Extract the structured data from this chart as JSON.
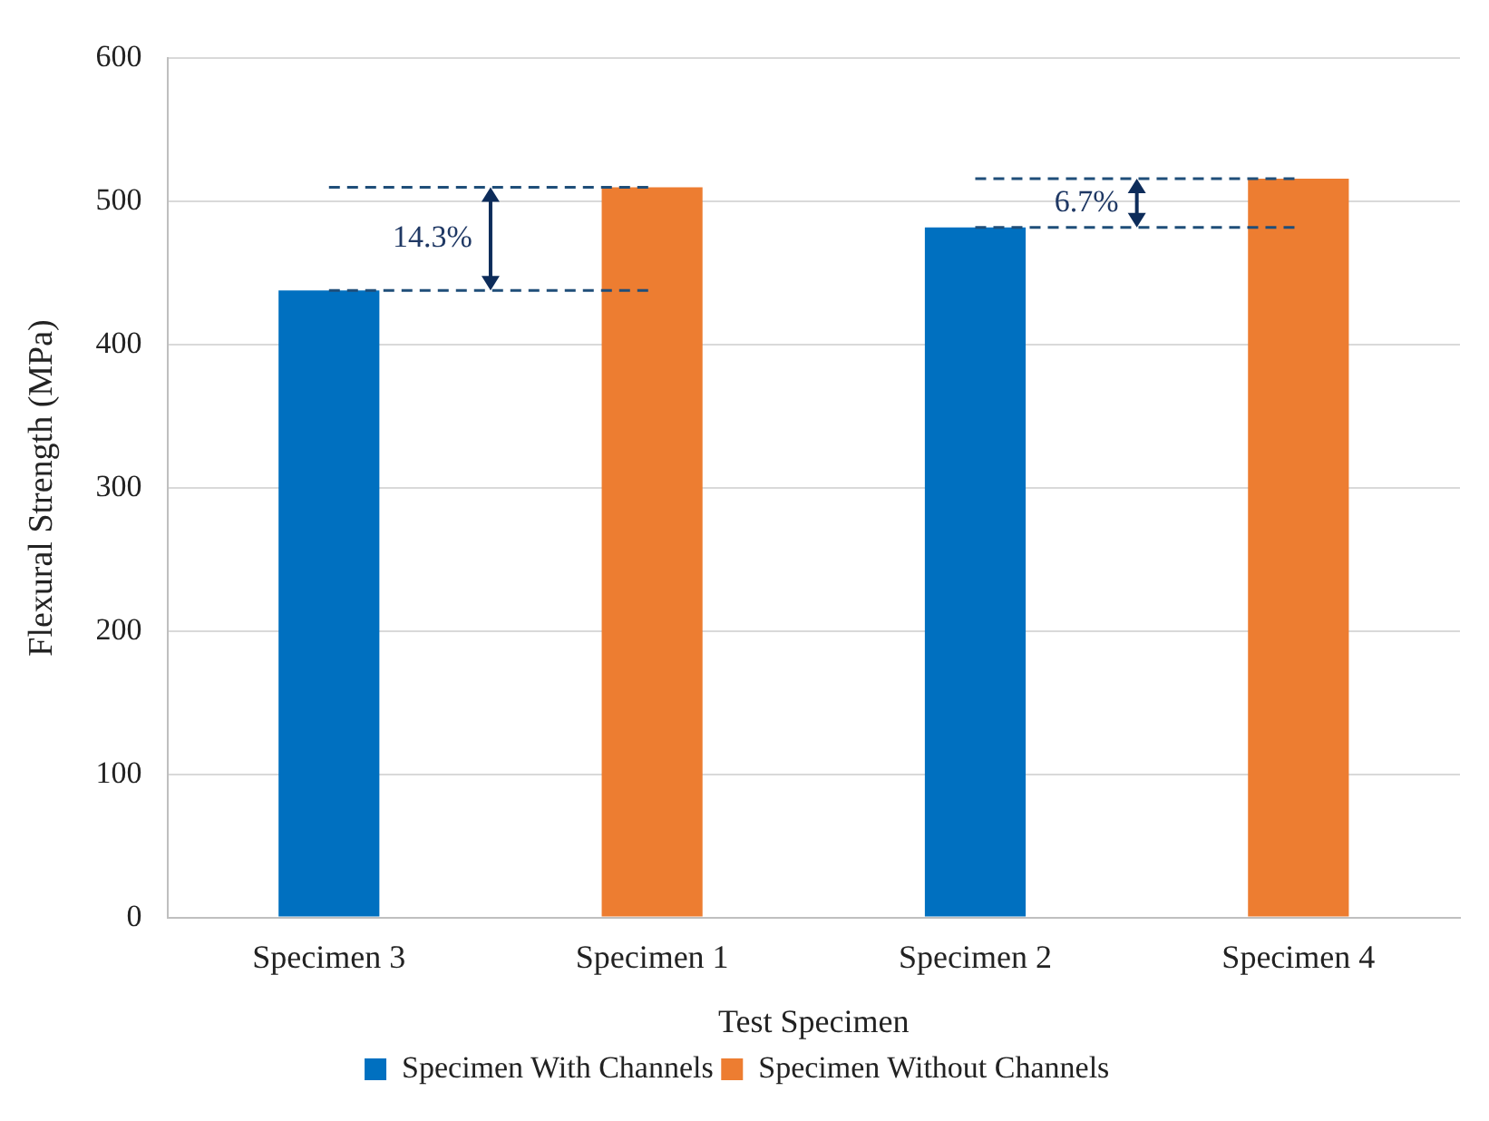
{
  "chart_data": {
    "type": "bar",
    "xlabel": "Test Specimen",
    "ylabel": "Flexural Strength (MPa)",
    "categories": [
      "Specimen 3",
      "Specimen 1",
      "Specimen 2",
      "Specimen 4"
    ],
    "series": [
      {
        "name": "Specimen With Channels",
        "color": "#0070c0",
        "values": [
          438,
          null,
          482,
          null
        ]
      },
      {
        "name": "Specimen Without Channels",
        "color": "#ed7d31",
        "values": [
          null,
          510,
          null,
          516
        ]
      },
      {
        "type": "line",
        "color": "#1f4e79",
        "line_style": "dashed",
        "marker": "none",
        "values": [
          438,
          438,
          null,
          null
        ]
      },
      {
        "type": "line",
        "color": "#1f4e79",
        "line_style": "dashed",
        "marker": "none",
        "values": [
          510,
          510,
          null,
          null
        ]
      },
      {
        "type": "line",
        "color": "#1f4e79",
        "line_style": "dashed",
        "marker": "none",
        "values": [
          null,
          null,
          482,
          482
        ]
      },
      {
        "type": "line",
        "color": "#1f4e79",
        "line_style": "dashed",
        "marker": "none",
        "values": [
          null,
          null,
          516,
          516
        ]
      }
    ],
    "ylim": [
      0,
      600
    ],
    "yticks": [
      0,
      100,
      200,
      300,
      400,
      500,
      600
    ],
    "grid": "y",
    "legend": "bottom",
    "annotations": [
      "14.3%",
      "6.7%"
    ]
  }
}
